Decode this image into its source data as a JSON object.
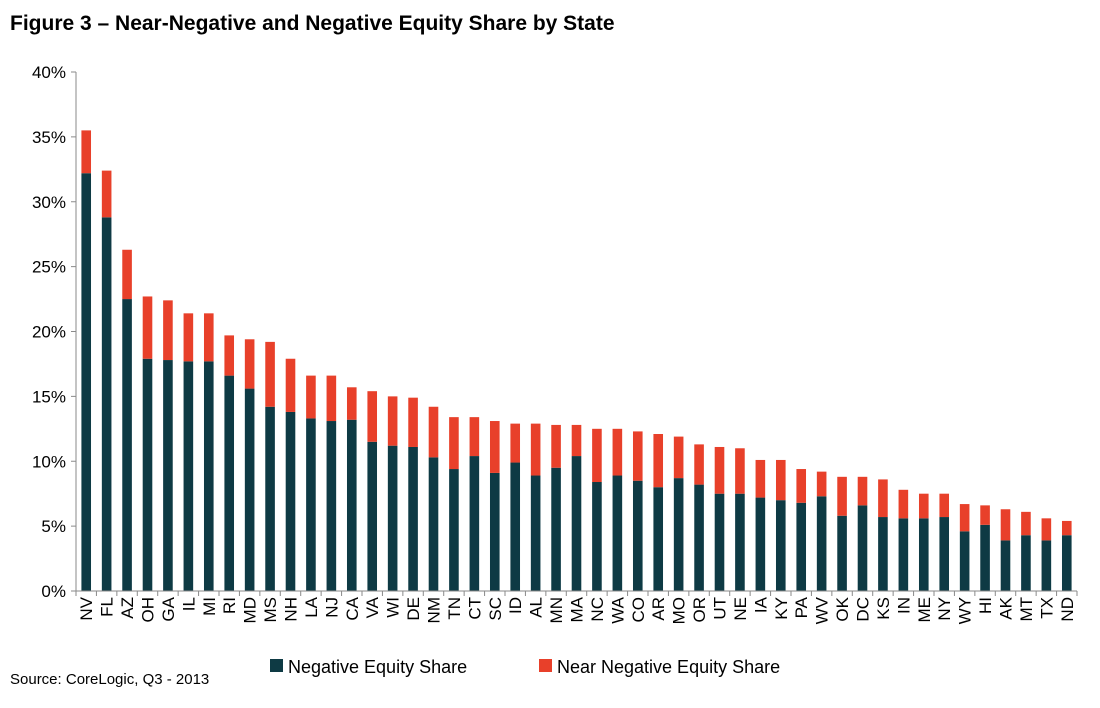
{
  "title": "Figure 3 – Near-Negative and Negative Equity Share by State",
  "source": "Source: CoreLogic, Q3 - 2013",
  "colors": {
    "negative": "#0e3a44",
    "near_negative": "#e8402a",
    "axis": "#8a8a8a"
  },
  "chart_data": {
    "type": "bar",
    "stacked": true,
    "title": "Figure 3 – Near-Negative and Negative Equity Share by State",
    "xlabel": "",
    "ylabel": "",
    "ylim": [
      0,
      40
    ],
    "yticks": [
      "0%",
      "5%",
      "10%",
      "15%",
      "20%",
      "25%",
      "30%",
      "35%",
      "40%"
    ],
    "grid": false,
    "legend_position": "bottom",
    "categories": [
      "NV",
      "FL",
      "AZ",
      "OH",
      "GA",
      "IL",
      "MI",
      "RI",
      "MD",
      "MS",
      "NH",
      "LA",
      "NJ",
      "CA",
      "VA",
      "WI",
      "DE",
      "NM",
      "TN",
      "CT",
      "SC",
      "ID",
      "AL",
      "MN",
      "MA",
      "NC",
      "WA",
      "CO",
      "AR",
      "MO",
      "OR",
      "UT",
      "NE",
      "IA",
      "KY",
      "PA",
      "WV",
      "OK",
      "DC",
      "KS",
      "IN",
      "ME",
      "NY",
      "WY",
      "HI",
      "AK",
      "MT",
      "TX",
      "ND"
    ],
    "series": [
      {
        "name": "Negative Equity Share",
        "values": [
          32.2,
          28.8,
          22.5,
          17.9,
          17.8,
          17.7,
          17.7,
          16.6,
          15.6,
          14.2,
          13.8,
          13.3,
          13.1,
          13.2,
          11.5,
          11.2,
          11.1,
          10.3,
          9.4,
          10.4,
          9.1,
          9.9,
          8.9,
          9.5,
          10.4,
          8.4,
          8.9,
          8.5,
          8.0,
          8.7,
          8.2,
          7.5,
          7.5,
          7.2,
          7.0,
          6.8,
          7.3,
          5.8,
          6.6,
          5.7,
          5.6,
          5.6,
          5.7,
          4.6,
          5.1,
          3.9,
          4.3,
          3.9,
          4.3
        ]
      },
      {
        "name": "Near Negative Equity Share",
        "values": [
          3.3,
          3.6,
          3.8,
          4.8,
          4.6,
          3.7,
          3.7,
          3.1,
          3.8,
          5.0,
          4.1,
          3.3,
          3.5,
          2.5,
          3.9,
          3.8,
          3.8,
          3.9,
          4.0,
          3.0,
          4.0,
          3.0,
          4.0,
          3.3,
          2.4,
          4.1,
          3.6,
          3.8,
          4.1,
          3.2,
          3.1,
          3.6,
          3.5,
          2.9,
          3.1,
          2.6,
          1.9,
          3.0,
          2.2,
          2.9,
          2.2,
          1.9,
          1.8,
          2.1,
          1.5,
          2.4,
          1.8,
          1.7,
          1.1
        ]
      }
    ]
  }
}
